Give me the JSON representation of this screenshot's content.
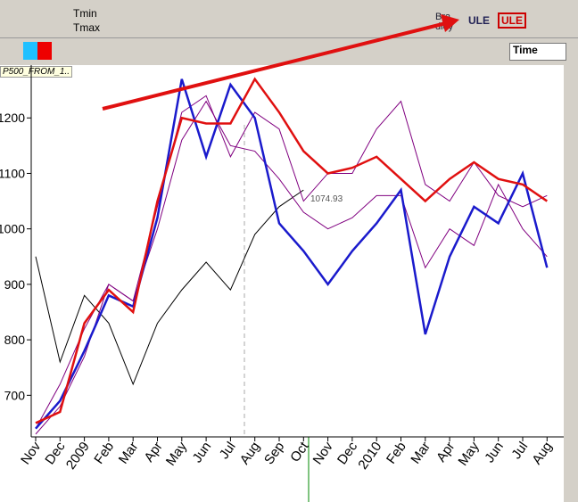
{
  "toolbar": {
    "tmin": "Tmin",
    "tmax": "Tmax",
    "bradley": "Bra dley",
    "ule1": "ULE",
    "ule2": "ULE",
    "timeframe": "Time"
  },
  "tab": "P500_FROM_1..",
  "chart_data": {
    "type": "line",
    "categories": [
      "Nov",
      "Dec",
      "2009",
      "Feb",
      "Mar",
      "Apr",
      "May",
      "Jun",
      "Jul",
      "Aug",
      "Sep",
      "Oct",
      "Nov",
      "Dec",
      "2010",
      "Feb",
      "Mar",
      "Apr",
      "May",
      "Jun",
      "Jul",
      "Aug"
    ],
    "series": [
      {
        "color": "#000000",
        "values": [
          950,
          760,
          880,
          830,
          720,
          830,
          890,
          940,
          890,
          990,
          1040,
          1070,
          null,
          null,
          null,
          null,
          null,
          null,
          null,
          null,
          null,
          null
        ]
      },
      {
        "color": "#800080",
        "values": [
          630,
          680,
          770,
          900,
          870,
          1040,
          1210,
          1240,
          1130,
          1210,
          1180,
          1050,
          1100,
          1100,
          1180,
          1230,
          1080,
          1050,
          1120,
          1060,
          1040,
          1060
        ]
      },
      {
        "color": "#800080",
        "values": [
          640,
          720,
          820,
          900,
          870,
          1000,
          1160,
          1230,
          1150,
          1140,
          1090,
          1030,
          1000,
          1020,
          1060,
          1060,
          930,
          1000,
          970,
          1080,
          1000,
          950
        ]
      },
      {
        "color": "#1a1acc",
        "values": [
          640,
          690,
          780,
          880,
          860,
          1020,
          1270,
          1130,
          1260,
          1200,
          1010,
          960,
          900,
          960,
          1010,
          1070,
          810,
          950,
          1040,
          1010,
          1100,
          930
        ]
      },
      {
        "color": "#e01010",
        "values": [
          650,
          670,
          830,
          890,
          850,
          1050,
          1200,
          1190,
          1190,
          1270,
          1210,
          1140,
          1100,
          1110,
          1130,
          1090,
          1050,
          1090,
          1120,
          1090,
          1080,
          1050
        ]
      }
    ],
    "ylim": [
      625,
      1292
    ],
    "yticks": [
      700,
      800,
      900,
      1000,
      1100,
      1200
    ],
    "annotation": "1074.93"
  }
}
